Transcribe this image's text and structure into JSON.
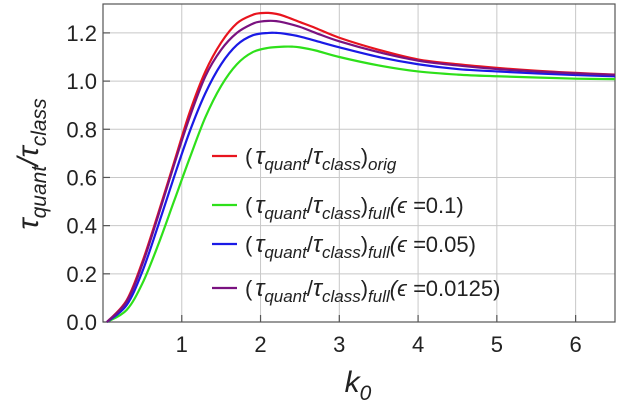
{
  "chart_data": {
    "type": "line",
    "xlabel": "k0",
    "ylabel": "τquant/τclass",
    "xlim": [
      0,
      6.5
    ],
    "ylim": [
      0,
      1.32
    ],
    "xticks": [
      1,
      2,
      3,
      4,
      5,
      6
    ],
    "yticks": [
      0.0,
      0.2,
      0.4,
      0.6,
      0.8,
      1.0,
      1.2
    ],
    "xtick_labels": [
      "1",
      "2",
      "3",
      "4",
      "5",
      "6"
    ],
    "ytick_labels": [
      "0.0",
      "0.2",
      "0.4",
      "0.6",
      "0.8",
      "1.0",
      "1.2"
    ],
    "grid": true,
    "legend_position": "center",
    "series": [
      {
        "name": "(τquant/τclass)orig",
        "color": "#e8141e",
        "x": [
          0.05,
          0.3,
          0.5,
          0.7,
          0.9,
          1.1,
          1.3,
          1.5,
          1.7,
          1.9,
          2.0,
          2.1,
          2.2,
          2.3,
          2.5,
          2.7,
          3.0,
          3.5,
          4.0,
          4.5,
          5.0,
          5.5,
          6.0,
          6.5
        ],
        "y": [
          0.0,
          0.09,
          0.25,
          0.45,
          0.66,
          0.87,
          1.04,
          1.16,
          1.24,
          1.275,
          1.282,
          1.283,
          1.279,
          1.27,
          1.245,
          1.22,
          1.18,
          1.13,
          1.09,
          1.07,
          1.055,
          1.043,
          1.034,
          1.027
        ]
      },
      {
        "name": "(τquant/τclass)full(ϵ=0.1)",
        "color": "#2ee01a",
        "x": [
          0.05,
          0.3,
          0.5,
          0.7,
          0.9,
          1.1,
          1.3,
          1.5,
          1.7,
          1.9,
          2.1,
          2.3,
          2.4,
          2.5,
          2.7,
          3.0,
          3.5,
          4.0,
          4.5,
          5.0,
          5.5,
          6.0,
          6.5
        ],
        "y": [
          0.0,
          0.05,
          0.16,
          0.32,
          0.5,
          0.68,
          0.85,
          0.98,
          1.07,
          1.12,
          1.138,
          1.143,
          1.143,
          1.14,
          1.127,
          1.1,
          1.065,
          1.04,
          1.027,
          1.02,
          1.015,
          1.01,
          1.008
        ]
      },
      {
        "name": "(τquant/τclass)full(ϵ=0.05)",
        "color": "#1a1ae6",
        "x": [
          0.05,
          0.3,
          0.5,
          0.7,
          0.9,
          1.1,
          1.3,
          1.5,
          1.7,
          1.9,
          2.1,
          2.2,
          2.3,
          2.5,
          2.7,
          3.0,
          3.5,
          4.0,
          4.5,
          5.0,
          5.5,
          6.0,
          6.5
        ],
        "y": [
          0.0,
          0.07,
          0.21,
          0.4,
          0.6,
          0.79,
          0.95,
          1.07,
          1.15,
          1.19,
          1.2,
          1.2,
          1.197,
          1.185,
          1.167,
          1.14,
          1.1,
          1.07,
          1.05,
          1.04,
          1.032,
          1.025,
          1.02
        ]
      },
      {
        "name": "(τquant/τclass)full(ϵ=0.0125)",
        "color": "#7a1280",
        "x": [
          0.05,
          0.3,
          0.5,
          0.7,
          0.9,
          1.1,
          1.3,
          1.5,
          1.7,
          1.9,
          2.0,
          2.1,
          2.2,
          2.3,
          2.5,
          2.7,
          3.0,
          3.5,
          4.0,
          4.5,
          5.0,
          5.5,
          6.0,
          6.5
        ],
        "y": [
          0.0,
          0.085,
          0.24,
          0.44,
          0.65,
          0.85,
          1.02,
          1.13,
          1.2,
          1.238,
          1.247,
          1.25,
          1.249,
          1.243,
          1.225,
          1.2,
          1.165,
          1.12,
          1.085,
          1.065,
          1.05,
          1.04,
          1.032,
          1.026
        ]
      }
    ]
  },
  "axes": {
    "y_title": {
      "main": "τ",
      "sub1": "quant",
      "slash": "/",
      "main2": "τ",
      "sub2": "class"
    },
    "x_title": {
      "main": "k",
      "sub": "0"
    }
  },
  "legend": [
    {
      "open": "(",
      "tau1": "τ",
      "s1": "quant",
      "slash": "/",
      "tau2": "τ",
      "s2": "class",
      "close": ")",
      "tag": "orig",
      "eps_prefix": "",
      "eps_value": "",
      "eps_close": ""
    },
    {
      "open": "(",
      "tau1": "τ",
      "s1": "quant",
      "slash": "/",
      "tau2": "τ",
      "s2": "class",
      "close": ")",
      "tag": "full",
      "eps_prefix": "(ϵ =",
      "eps_value": "0.1",
      "eps_close": ")"
    },
    {
      "open": "(",
      "tau1": "τ",
      "s1": "quant",
      "slash": "/",
      "tau2": "τ",
      "s2": "class",
      "close": ")",
      "tag": "full",
      "eps_prefix": "(ϵ =",
      "eps_value": "0.05",
      "eps_close": ")"
    },
    {
      "open": "(",
      "tau1": "τ",
      "s1": "quant",
      "slash": "/",
      "tau2": "τ",
      "s2": "class",
      "close": ")",
      "tag": "full",
      "eps_prefix": "(ϵ =",
      "eps_value": "0.0125",
      "eps_close": ")"
    }
  ]
}
